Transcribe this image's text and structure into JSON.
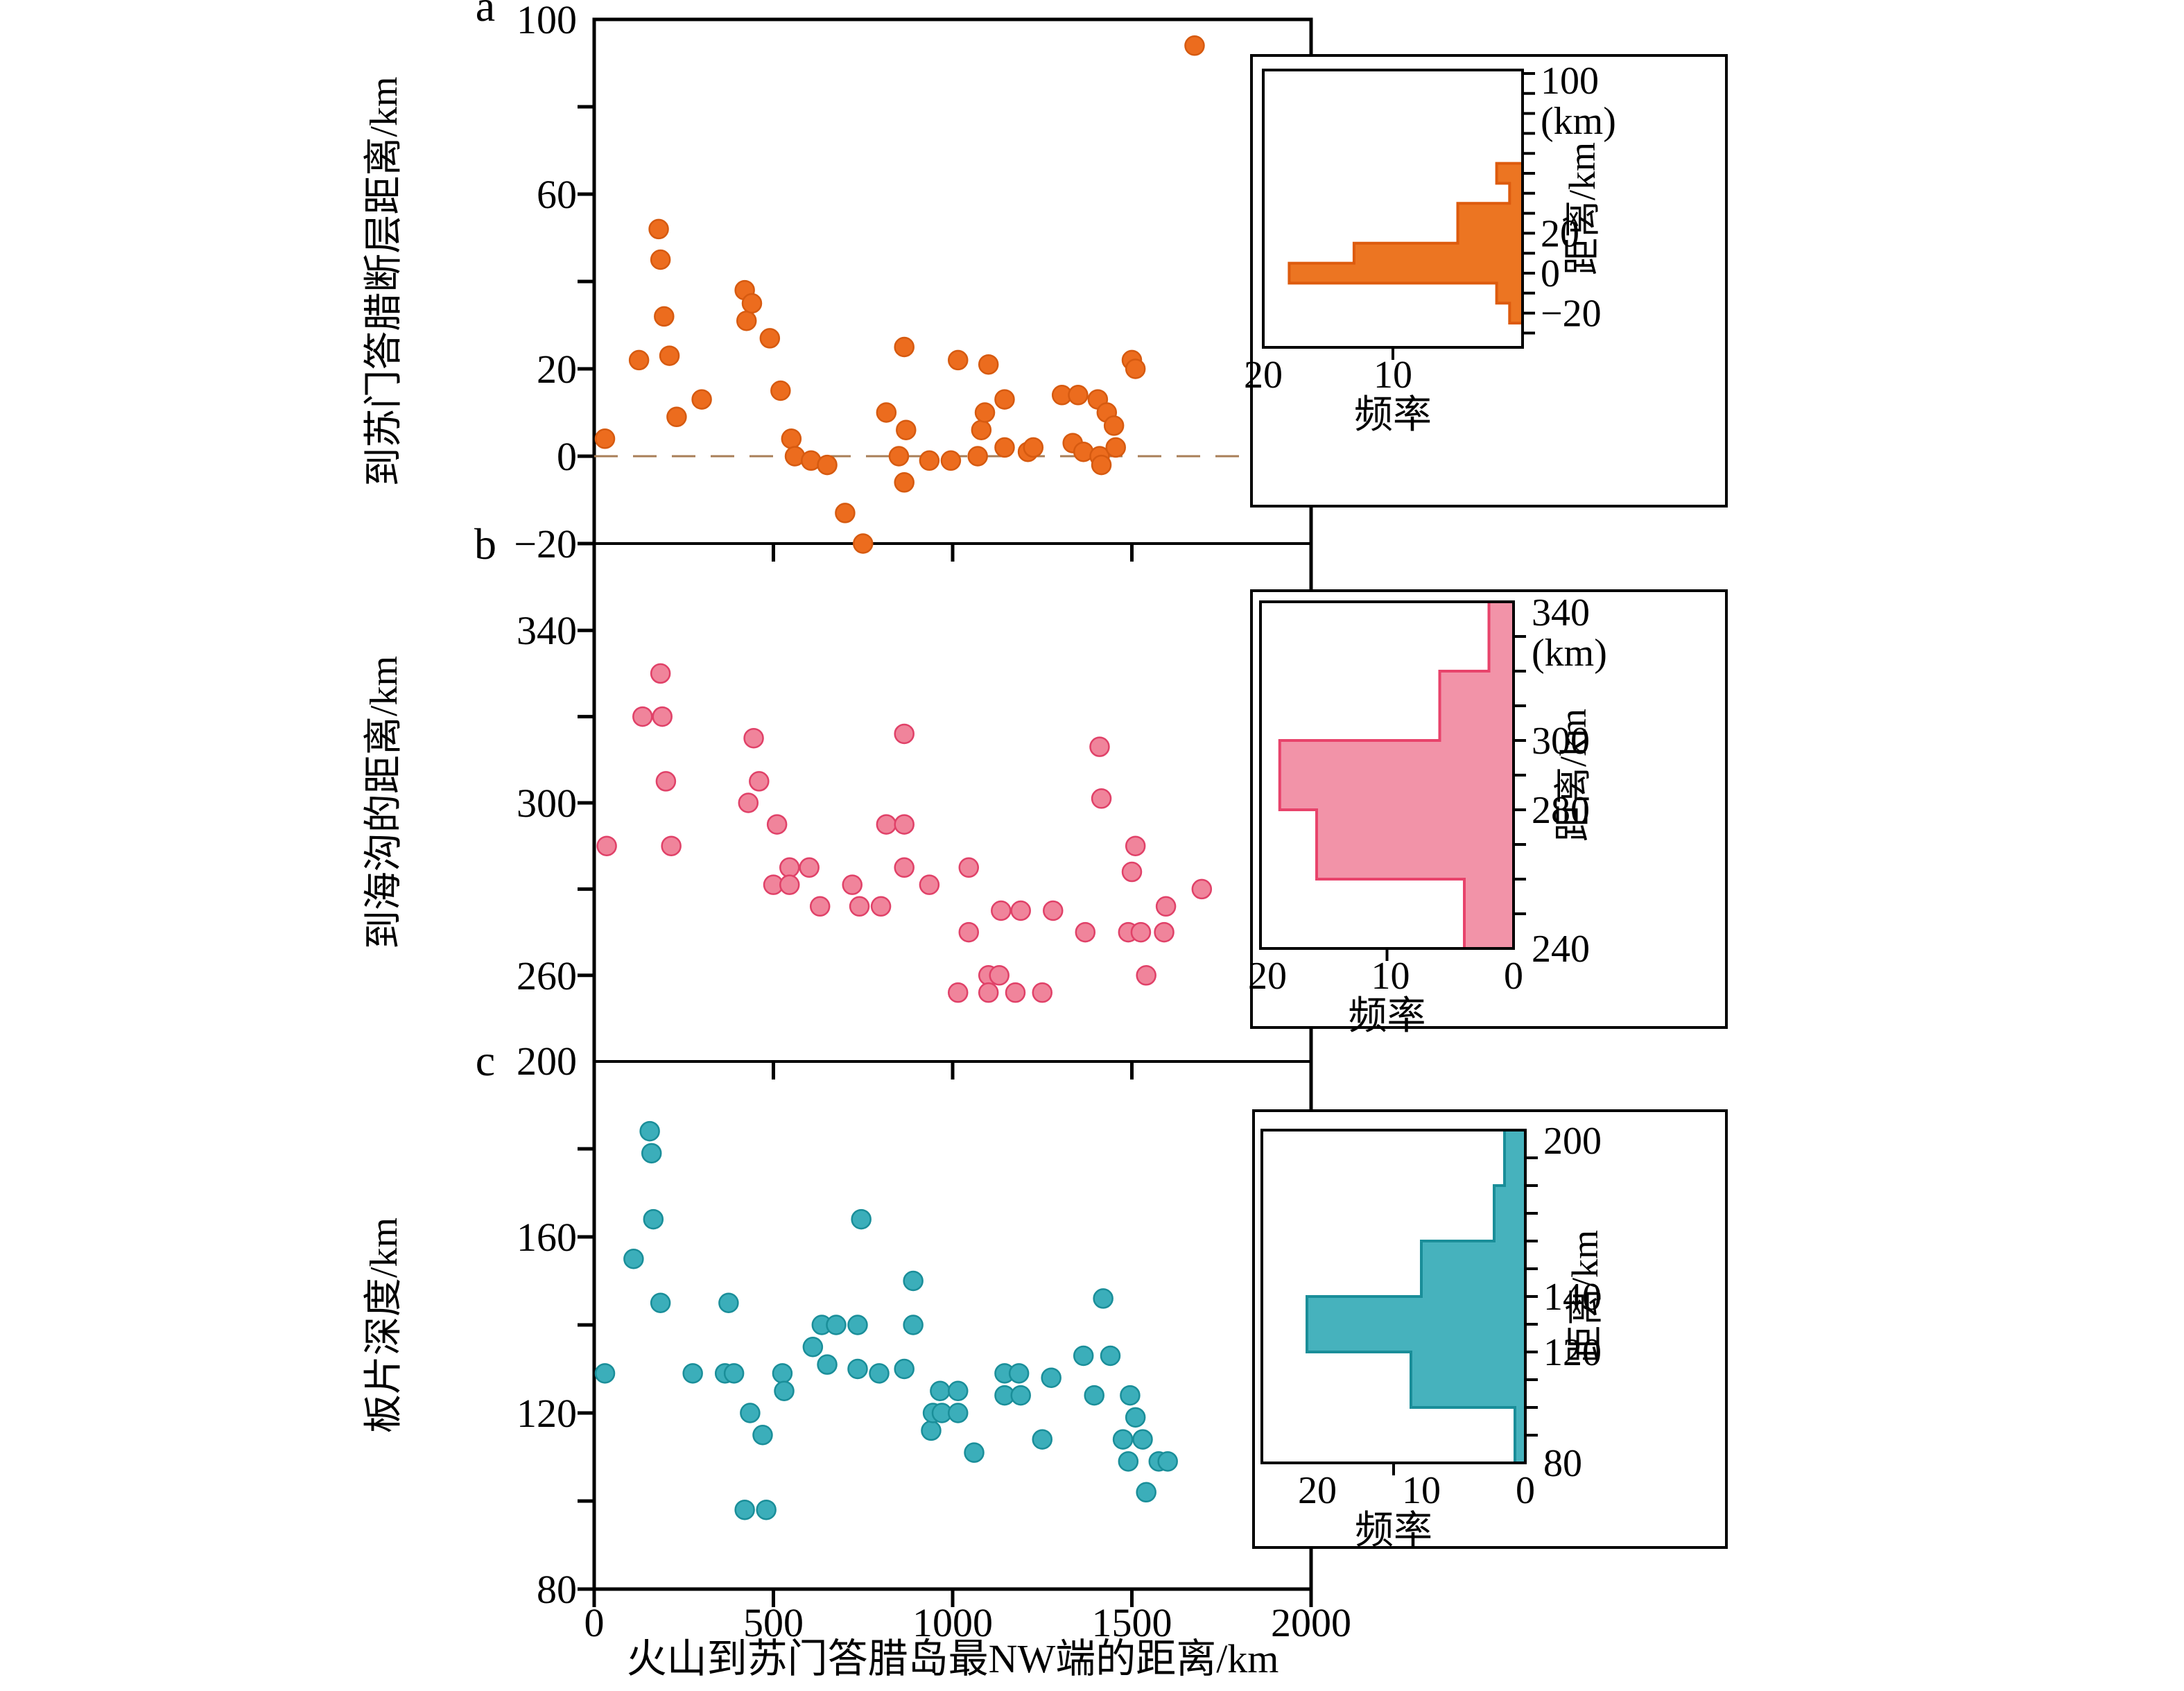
{
  "chart_data": {
    "type": "scatter",
    "title": "",
    "x_axis": {
      "label": "火山到苏门答腊岛最NW端的距离/km",
      "min": 0,
      "max": 2000,
      "ticks": [
        "0",
        "500",
        "1000",
        "1500",
        "2000"
      ],
      "tick_values": [
        0,
        500,
        1000,
        1500,
        2000
      ]
    },
    "panels": [
      {
        "letter": "a",
        "ylabel": "到苏门答腊断层距离/km",
        "y_min": -20,
        "y_max": 100,
        "y_ticks": [
          100,
          80,
          60,
          40,
          20,
          0,
          -20
        ],
        "y_labeled_ticks": [
          [
            100,
            "100"
          ],
          [
            60,
            "60"
          ],
          [
            20,
            "20"
          ],
          [
            0,
            "0"
          ],
          [
            -20,
            "−20"
          ]
        ],
        "zero_dashed_line": 0,
        "colors": {
          "dot": "#EC6C1E",
          "dot_edge": "#D65A10",
          "hist": "#EC7522",
          "hist_edge": "#DD5B0E",
          "dash": "#A87E57"
        },
        "points": [
          [
            30,
            4
          ],
          [
            125,
            22
          ],
          [
            180,
            52
          ],
          [
            185,
            45
          ],
          [
            195,
            32
          ],
          [
            210,
            23
          ],
          [
            230,
            9
          ],
          [
            300,
            13
          ],
          [
            420,
            38
          ],
          [
            425,
            31
          ],
          [
            440,
            35
          ],
          [
            490,
            27
          ],
          [
            520,
            15
          ],
          [
            550,
            4
          ],
          [
            560,
            0
          ],
          [
            605,
            -1
          ],
          [
            650,
            -2
          ],
          [
            700,
            -13
          ],
          [
            750,
            -20
          ],
          [
            815,
            10
          ],
          [
            850,
            0
          ],
          [
            865,
            25
          ],
          [
            870,
            6
          ],
          [
            865,
            -6
          ],
          [
            935,
            -1
          ],
          [
            995,
            -1
          ],
          [
            1015,
            22
          ],
          [
            1070,
            0
          ],
          [
            1080,
            6
          ],
          [
            1090,
            10
          ],
          [
            1100,
            21
          ],
          [
            1145,
            13
          ],
          [
            1145,
            2
          ],
          [
            1210,
            1
          ],
          [
            1225,
            2
          ],
          [
            1305,
            14
          ],
          [
            1335,
            3
          ],
          [
            1350,
            14
          ],
          [
            1365,
            1
          ],
          [
            1405,
            13
          ],
          [
            1410,
            0
          ],
          [
            1415,
            -2
          ],
          [
            1430,
            10
          ],
          [
            1450,
            7
          ],
          [
            1455,
            2
          ],
          [
            1500,
            22
          ],
          [
            1510,
            20
          ],
          [
            1675,
            94
          ]
        ],
        "inset": {
          "head_label": "100",
          "head_unit": "(km)",
          "axis_label": "距离/km",
          "freq_label": "频率",
          "labeled_ticks": [
            [
              20,
              "20"
            ],
            [
              0,
              "0"
            ],
            [
              -20,
              "−20"
            ]
          ],
          "freq_ticks": [
            [
              20,
              "20"
            ],
            [
              10,
              "10"
            ]
          ],
          "bin_width": 10,
          "bins": [
            [
              -25,
              1
            ],
            [
              -15,
              2
            ],
            [
              -5,
              18
            ],
            [
              5,
              13
            ],
            [
              15,
              5
            ],
            [
              25,
              5
            ],
            [
              35,
              1
            ],
            [
              45,
              2
            ]
          ]
        }
      },
      {
        "letter": "b",
        "ylabel": "到海沟的距离/km",
        "y_min": 240,
        "y_max": 360,
        "y_ticks": [
          340,
          320,
          300,
          280,
          260
        ],
        "y_labeled_ticks": [
          [
            340,
            "340"
          ],
          [
            300,
            "300"
          ],
          [
            260,
            "260"
          ]
        ],
        "zero_dashed_line": null,
        "colors": {
          "dot": "#F0849B",
          "dot_edge": "#E04168",
          "hist": "#F293A8",
          "hist_edge": "#E8436B",
          "dash": "#A87E57"
        },
        "points": [
          [
            35,
            290
          ],
          [
            135,
            320
          ],
          [
            185,
            330
          ],
          [
            190,
            320
          ],
          [
            200,
            305
          ],
          [
            215,
            290
          ],
          [
            430,
            300
          ],
          [
            445,
            315
          ],
          [
            460,
            305
          ],
          [
            500,
            281
          ],
          [
            510,
            295
          ],
          [
            545,
            285
          ],
          [
            545,
            281
          ],
          [
            600,
            285
          ],
          [
            630,
            276
          ],
          [
            720,
            281
          ],
          [
            740,
            276
          ],
          [
            800,
            276
          ],
          [
            815,
            295
          ],
          [
            865,
            316
          ],
          [
            865,
            295
          ],
          [
            865,
            285
          ],
          [
            935,
            281
          ],
          [
            1015,
            256
          ],
          [
            1045,
            285
          ],
          [
            1045,
            270
          ],
          [
            1100,
            260
          ],
          [
            1100,
            256
          ],
          [
            1130,
            260
          ],
          [
            1135,
            275
          ],
          [
            1175,
            256
          ],
          [
            1190,
            275
          ],
          [
            1250,
            256
          ],
          [
            1280,
            275
          ],
          [
            1370,
            270
          ],
          [
            1410,
            313
          ],
          [
            1415,
            301
          ],
          [
            1490,
            270
          ],
          [
            1500,
            284
          ],
          [
            1510,
            290
          ],
          [
            1525,
            270
          ],
          [
            1540,
            260
          ],
          [
            1590,
            270
          ],
          [
            1595,
            276
          ],
          [
            1695,
            280
          ]
        ],
        "inset": {
          "head_label": "340",
          "head_unit": "(km)",
          "axis_label": "距离/km",
          "freq_label": "频率",
          "labeled_ticks": [
            [
              300,
              "300"
            ],
            [
              280,
              "280"
            ],
            [
              240,
              "240"
            ]
          ],
          "freq_ticks": [
            [
              20,
              "20"
            ],
            [
              10,
              "10"
            ],
            [
              0,
              "0"
            ]
          ],
          "bin_width": 20,
          "bins": [
            [
              240,
              4
            ],
            [
              260,
              16
            ],
            [
              280,
              19
            ],
            [
              300,
              6
            ],
            [
              320,
              2
            ]
          ]
        }
      },
      {
        "letter": "c",
        "ylabel": "板片深度/km",
        "y_min": 80,
        "y_max": 200,
        "y_ticks": [
          200,
          180,
          160,
          140,
          120,
          100,
          80
        ],
        "y_labeled_ticks": [
          [
            200,
            "200"
          ],
          [
            160,
            "160"
          ],
          [
            120,
            "120"
          ],
          [
            80,
            "80"
          ]
        ],
        "zero_dashed_line": null,
        "colors": {
          "dot": "#3BAEBA",
          "dot_edge": "#1A8E99",
          "hist": "#46B2BD",
          "hist_edge": "#1A8E99",
          "dash": "#A87E57"
        },
        "points": [
          [
            30,
            129
          ],
          [
            110,
            155
          ],
          [
            155,
            184
          ],
          [
            160,
            179
          ],
          [
            165,
            164
          ],
          [
            185,
            145
          ],
          [
            275,
            129
          ],
          [
            365,
            129
          ],
          [
            375,
            145
          ],
          [
            390,
            129
          ],
          [
            420,
            98
          ],
          [
            435,
            120
          ],
          [
            470,
            115
          ],
          [
            480,
            98
          ],
          [
            525,
            129
          ],
          [
            530,
            125
          ],
          [
            610,
            135
          ],
          [
            635,
            140
          ],
          [
            650,
            131
          ],
          [
            675,
            140
          ],
          [
            735,
            140
          ],
          [
            735,
            130
          ],
          [
            745,
            164
          ],
          [
            795,
            129
          ],
          [
            865,
            130
          ],
          [
            890,
            150
          ],
          [
            890,
            140
          ],
          [
            940,
            116
          ],
          [
            945,
            120
          ],
          [
            965,
            125
          ],
          [
            970,
            120
          ],
          [
            1015,
            125
          ],
          [
            1015,
            120
          ],
          [
            1060,
            111
          ],
          [
            1145,
            129
          ],
          [
            1145,
            124
          ],
          [
            1185,
            129
          ],
          [
            1190,
            124
          ],
          [
            1250,
            114
          ],
          [
            1275,
            128
          ],
          [
            1365,
            133
          ],
          [
            1395,
            124
          ],
          [
            1420,
            146
          ],
          [
            1440,
            133
          ],
          [
            1475,
            114
          ],
          [
            1490,
            109
          ],
          [
            1495,
            124
          ],
          [
            1510,
            119
          ],
          [
            1530,
            114
          ],
          [
            1540,
            102
          ],
          [
            1575,
            109
          ],
          [
            1600,
            109
          ]
        ],
        "inset": {
          "head_label": "200",
          "head_unit": "",
          "axis_label": "距离/km",
          "freq_label": "频率",
          "labeled_ticks": [
            [
              140,
              "140"
            ],
            [
              120,
              "120"
            ],
            [
              80,
              "80"
            ]
          ],
          "freq_ticks": [
            [
              20,
              "20"
            ],
            [
              10,
              "10"
            ],
            [
              0,
              "0"
            ]
          ],
          "bin_width": 20,
          "bins": [
            [
              80,
              1
            ],
            [
              100,
              11
            ],
            [
              120,
              21
            ],
            [
              140,
              10
            ],
            [
              160,
              3
            ],
            [
              180,
              2
            ]
          ]
        }
      }
    ]
  }
}
